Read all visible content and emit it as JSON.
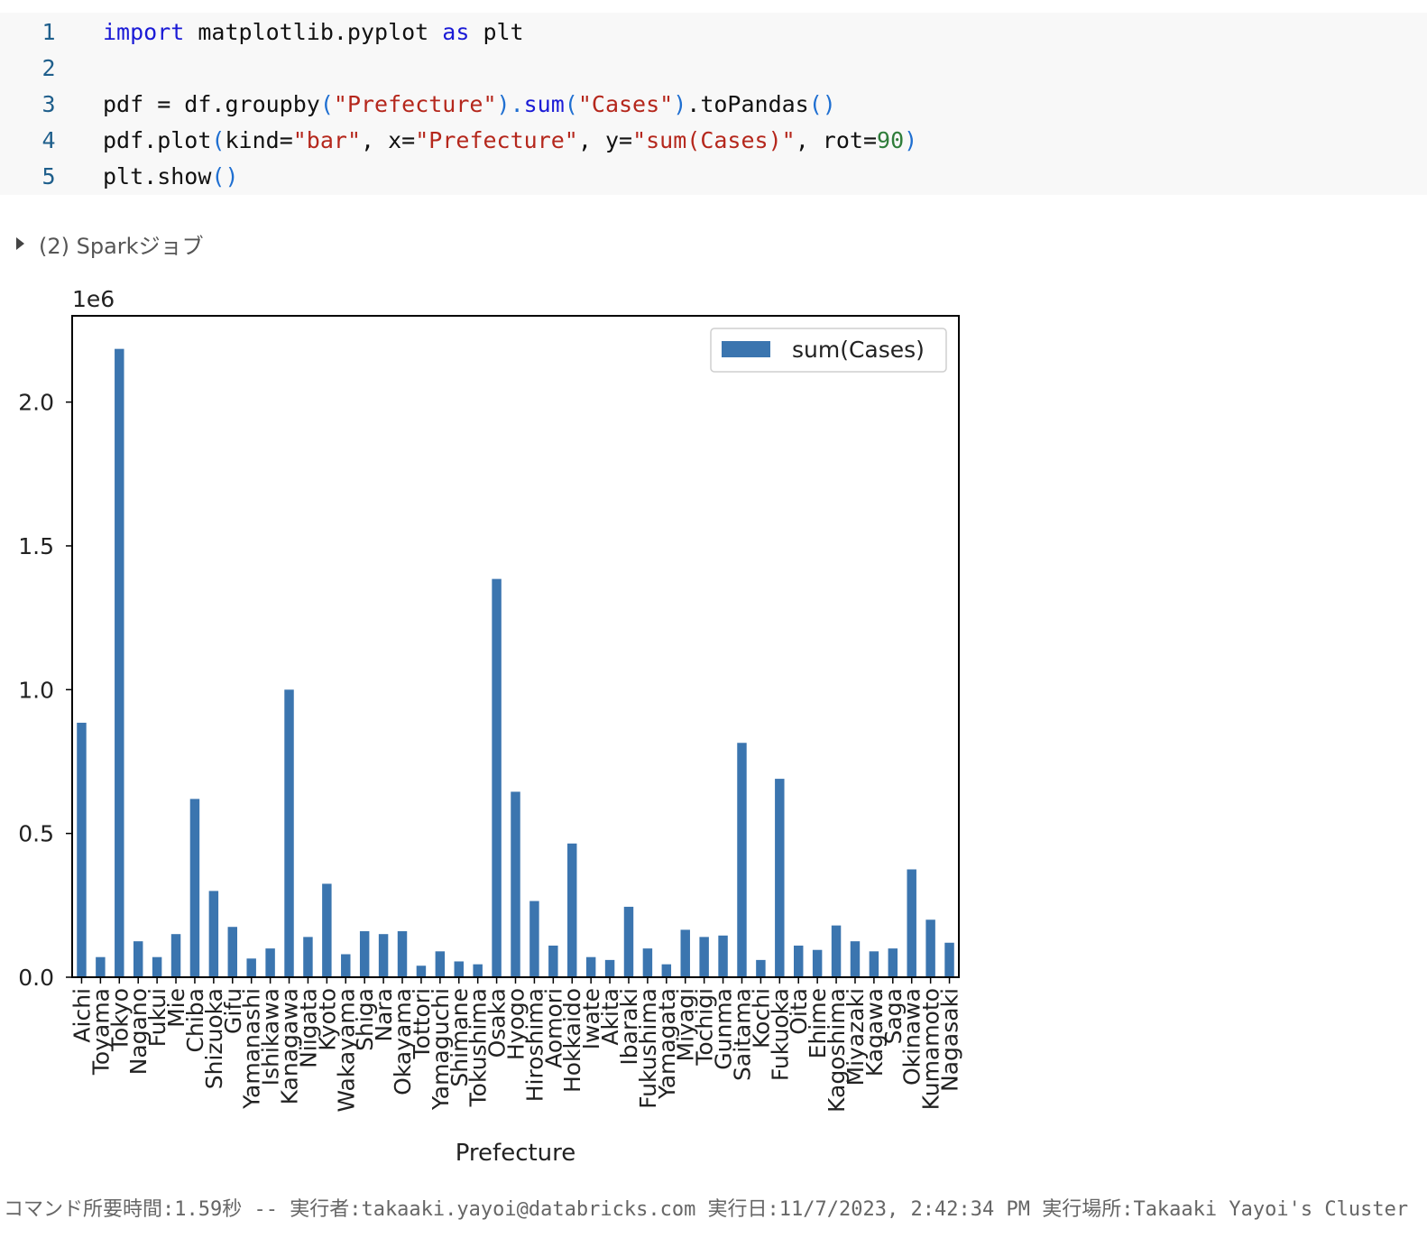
{
  "code_cell": {
    "lines": [
      {
        "n": "1",
        "tokens": [
          {
            "t": "import",
            "c": "kw"
          },
          {
            "t": " matplotlib.pyplot ",
            "c": ""
          },
          {
            "t": "as",
            "c": "kw"
          },
          {
            "t": " plt",
            "c": ""
          }
        ]
      },
      {
        "n": "2",
        "tokens": []
      },
      {
        "n": "3",
        "tokens": [
          {
            "t": "pdf = df.groupby",
            "c": ""
          },
          {
            "t": "(",
            "c": "paren"
          },
          {
            "t": "\"Prefecture\"",
            "c": "str"
          },
          {
            "t": ").",
            "c": "paren"
          },
          {
            "t": "sum",
            "c": "kw"
          },
          {
            "t": "(",
            "c": "paren"
          },
          {
            "t": "\"Cases\"",
            "c": "str"
          },
          {
            "t": ")",
            "c": "paren"
          },
          {
            "t": ".toPandas",
            "c": ""
          },
          {
            "t": "()",
            "c": "paren"
          }
        ]
      },
      {
        "n": "4",
        "tokens": [
          {
            "t": "pdf.plot",
            "c": ""
          },
          {
            "t": "(",
            "c": "paren"
          },
          {
            "t": "kind=",
            "c": ""
          },
          {
            "t": "\"bar\"",
            "c": "str"
          },
          {
            "t": ", x=",
            "c": ""
          },
          {
            "t": "\"Prefecture\"",
            "c": "str"
          },
          {
            "t": ", y=",
            "c": ""
          },
          {
            "t": "\"sum(Cases)\"",
            "c": "str"
          },
          {
            "t": ", rot=",
            "c": ""
          },
          {
            "t": "90",
            "c": "num"
          },
          {
            "t": ")",
            "c": "paren"
          }
        ]
      },
      {
        "n": "5",
        "tokens": [
          {
            "t": "plt.show",
            "c": ""
          },
          {
            "t": "()",
            "c": "paren"
          }
        ]
      }
    ]
  },
  "spark_jobs": {
    "label": "(2) Sparkジョブ"
  },
  "chart_data": {
    "type": "bar",
    "offset_label": "1e6",
    "xlabel": "Prefecture",
    "ylabel": "",
    "ylim": [
      0,
      2.3
    ],
    "yticks": [
      "0.0",
      "0.5",
      "1.0",
      "1.5",
      "2.0"
    ],
    "legend": {
      "placement": "top-right"
    },
    "bar_color": "#3b75af",
    "categories": [
      "Aichi",
      "Toyama",
      "Tokyo",
      "Nagano",
      "Fukui",
      "Mie",
      "Chiba",
      "Shizuoka",
      "Gifu",
      "Yamanashi",
      "Ishikawa",
      "Kanagawa",
      "Niigata",
      "Kyoto",
      "Wakayama",
      "Shiga",
      "Nara",
      "Okayama",
      "Tottori",
      "Yamaguchi",
      "Shimane",
      "Tokushima",
      "Osaka",
      "Hyogo",
      "Hiroshima",
      "Aomori",
      "Hokkaido",
      "Iwate",
      "Akita",
      "Ibaraki",
      "Fukushima",
      "Yamagata",
      "Miyagi",
      "Tochigi",
      "Gunma",
      "Saitama",
      "Kochi",
      "Fukuoka",
      "Oita",
      "Ehime",
      "Kagoshima",
      "Miyazaki",
      "Kagawa",
      "Saga",
      "Okinawa",
      "Kumamoto",
      "Nagasaki"
    ],
    "series": [
      {
        "name": "sum(Cases)",
        "values": [
          0.885,
          0.07,
          2.185,
          0.125,
          0.07,
          0.15,
          0.62,
          0.3,
          0.175,
          0.065,
          0.1,
          1.0,
          0.14,
          0.325,
          0.08,
          0.16,
          0.15,
          0.16,
          0.04,
          0.09,
          0.055,
          0.045,
          1.385,
          0.645,
          0.265,
          0.11,
          0.465,
          0.07,
          0.06,
          0.245,
          0.1,
          0.045,
          0.165,
          0.14,
          0.145,
          0.815,
          0.06,
          0.69,
          0.11,
          0.095,
          0.18,
          0.125,
          0.09,
          0.1,
          0.375,
          0.2,
          0.12
        ]
      }
    ]
  },
  "footer": {
    "text": "コマンド所要時間:1.59秒 -- 実行者:takaaki.yayoi@databricks.com 実行日:11/7/2023, 2:42:34 PM 実行場所:Takaaki Yayoi's Cluster"
  }
}
